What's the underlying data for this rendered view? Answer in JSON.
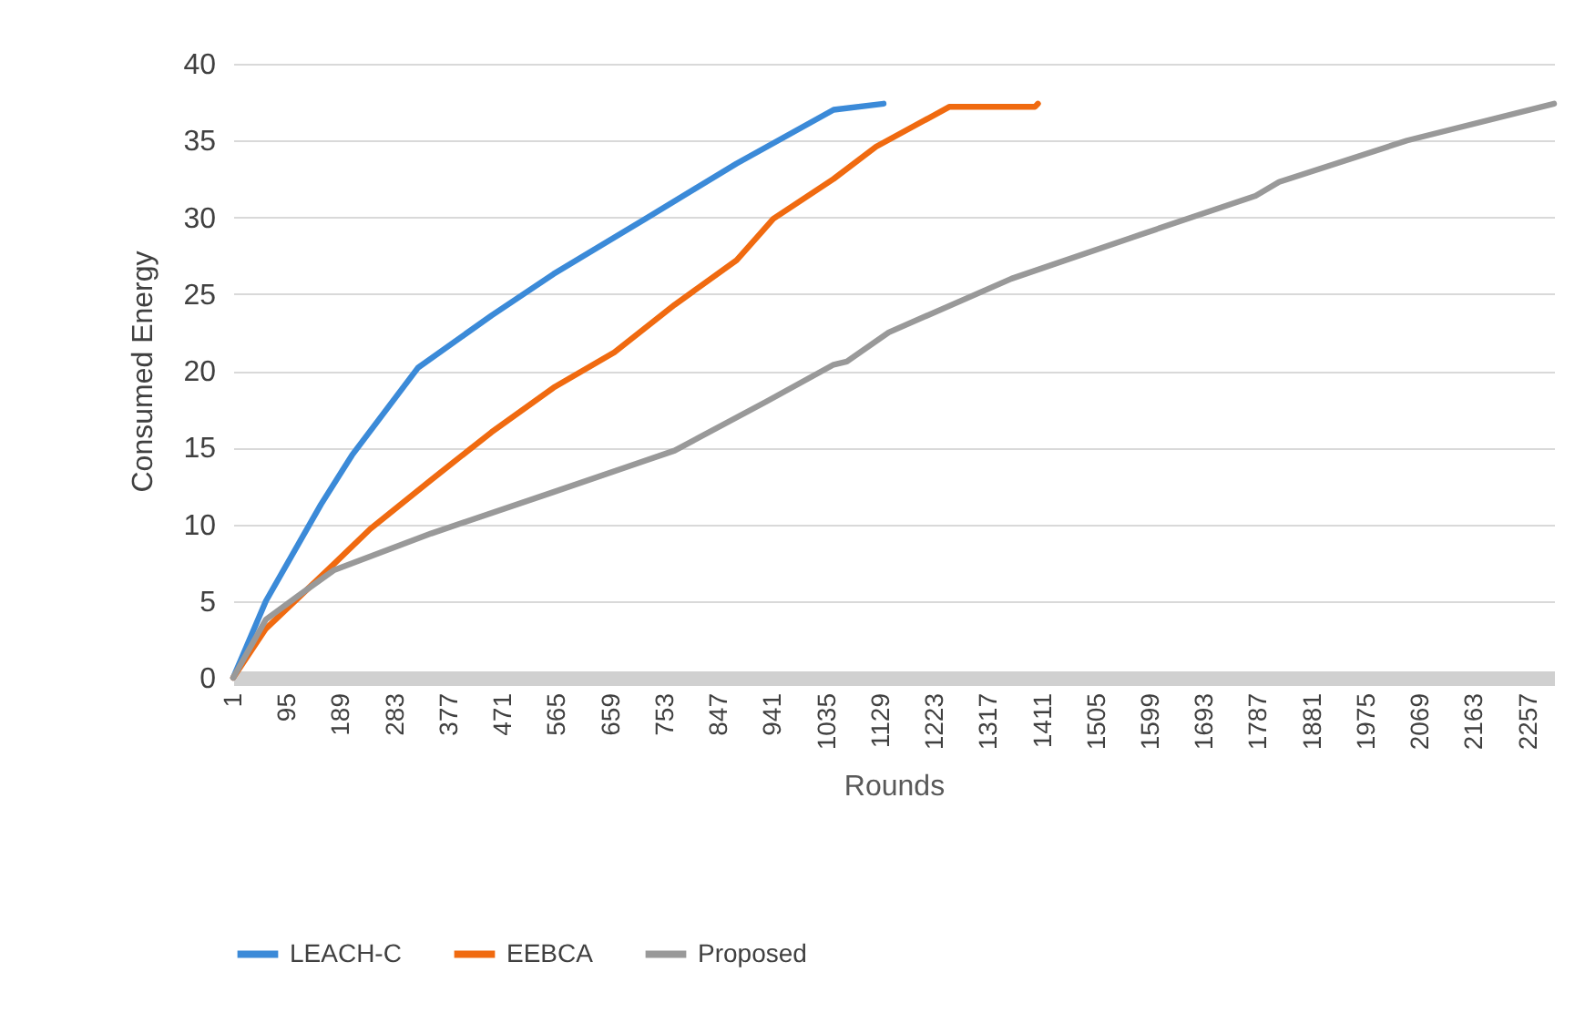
{
  "chart_data": {
    "type": "line",
    "xlabel": "Rounds",
    "ylabel": "Consumed Energy",
    "xlim": [
      1,
      2302
    ],
    "xticks": [
      1,
      95,
      189,
      283,
      377,
      471,
      565,
      659,
      753,
      847,
      941,
      1035,
      1129,
      1223,
      1317,
      1411,
      1505,
      1599,
      1693,
      1787,
      1881,
      1975,
      2069,
      2163,
      2257
    ],
    "ylim": [
      0,
      40
    ],
    "yticks": [
      0,
      5,
      10,
      15,
      20,
      25,
      30,
      35,
      40
    ],
    "grid": "y",
    "legend": "bottom",
    "line_style": "solid",
    "marker": "none",
    "series": [
      {
        "name": "LEACH-C",
        "color": "#3b8ad8",
        "x": [
          1,
          58,
          154,
          208,
          323,
          451,
          559,
          719,
          878,
          1047,
          1134
        ],
        "values": [
          0,
          5,
          11.3,
          14.5,
          20.2,
          23.6,
          26.3,
          29.9,
          33.5,
          37,
          37.4
        ]
      },
      {
        "name": "EEBCA",
        "color": "#f06a10",
        "x": [
          1,
          58,
          176,
          240,
          346,
          451,
          559,
          665,
          770,
          878,
          942,
          1047,
          1121,
          1249,
          1398,
          1403
        ],
        "values": [
          0,
          3.2,
          7.4,
          9.7,
          12.9,
          16,
          18.9,
          21.2,
          24.3,
          27.2,
          29.9,
          32.5,
          34.6,
          37.2,
          37.2,
          37.4
        ]
      },
      {
        "name": "Proposed",
        "color": "#999999",
        "x": [
          1,
          58,
          113,
          176,
          346,
          559,
          770,
          930,
          1047,
          1070,
          1143,
          1357,
          1568,
          1782,
          1823,
          2046,
          2302
        ],
        "values": [
          0,
          3.8,
          5.3,
          7,
          9.4,
          12.1,
          14.8,
          18,
          20.4,
          20.6,
          22.5,
          26,
          28.7,
          31.4,
          32.3,
          35,
          37.4
        ]
      }
    ]
  }
}
